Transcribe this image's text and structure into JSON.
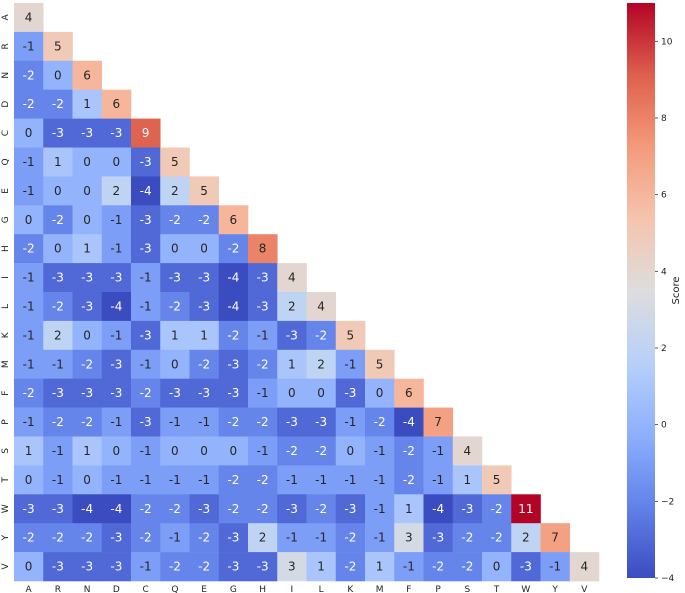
{
  "chart_data": {
    "type": "heatmap",
    "labels": [
      "A",
      "R",
      "N",
      "D",
      "C",
      "Q",
      "E",
      "G",
      "H",
      "I",
      "L",
      "K",
      "M",
      "F",
      "P",
      "S",
      "T",
      "W",
      "Y",
      "V"
    ],
    "values": [
      [
        4
      ],
      [
        -1,
        5
      ],
      [
        -2,
        0,
        6
      ],
      [
        -2,
        -2,
        1,
        6
      ],
      [
        0,
        -3,
        -3,
        -3,
        9
      ],
      [
        -1,
        1,
        0,
        0,
        -3,
        5
      ],
      [
        -1,
        0,
        0,
        2,
        -4,
        2,
        5
      ],
      [
        0,
        -2,
        0,
        -1,
        -3,
        -2,
        -2,
        6
      ],
      [
        -2,
        0,
        1,
        -1,
        -3,
        0,
        0,
        -2,
        8
      ],
      [
        -1,
        -3,
        -3,
        -3,
        -1,
        -3,
        -3,
        -4,
        -3,
        4
      ],
      [
        -1,
        -2,
        -3,
        -4,
        -1,
        -2,
        -3,
        -4,
        -3,
        2,
        4
      ],
      [
        -1,
        2,
        0,
        -1,
        -3,
        1,
        1,
        -2,
        -1,
        -3,
        -2,
        5
      ],
      [
        -1,
        -1,
        -2,
        -3,
        -1,
        0,
        -2,
        -3,
        -2,
        1,
        2,
        -1,
        5
      ],
      [
        -2,
        -3,
        -3,
        -3,
        -2,
        -3,
        -3,
        -3,
        -1,
        0,
        0,
        -3,
        0,
        6
      ],
      [
        -1,
        -2,
        -2,
        -1,
        -3,
        -1,
        -1,
        -2,
        -2,
        -3,
        -3,
        -1,
        -2,
        -4,
        7
      ],
      [
        1,
        -1,
        1,
        0,
        -1,
        0,
        0,
        0,
        -1,
        -2,
        -2,
        0,
        -1,
        -2,
        -1,
        4
      ],
      [
        0,
        -1,
        0,
        -1,
        -1,
        -1,
        -1,
        -2,
        -2,
        -1,
        -1,
        -1,
        -1,
        -2,
        -1,
        1,
        5
      ],
      [
        -3,
        -3,
        -4,
        -4,
        -2,
        -2,
        -3,
        -2,
        -2,
        -3,
        -2,
        -3,
        -1,
        1,
        -4,
        -3,
        -2,
        11
      ],
      [
        -2,
        -2,
        -2,
        -3,
        -2,
        -1,
        -2,
        -3,
        2,
        -1,
        -1,
        -2,
        -1,
        3,
        -3,
        -2,
        -2,
        2,
        7
      ],
      [
        0,
        -3,
        -3,
        -3,
        -1,
        -2,
        -2,
        -3,
        -3,
        3,
        1,
        -2,
        1,
        -1,
        -2,
        -2,
        0,
        -3,
        -1,
        4
      ]
    ],
    "vmin": -4,
    "vmax": 11,
    "colormap": "coolwarm",
    "colorbar_label": "Score",
    "colorbar_ticks": [
      -4,
      -2,
      0,
      2,
      4,
      6,
      8,
      10
    ],
    "colorbar_tick_labels": [
      "−4",
      "−2",
      "0",
      "2",
      "4",
      "6",
      "8",
      "10"
    ]
  }
}
